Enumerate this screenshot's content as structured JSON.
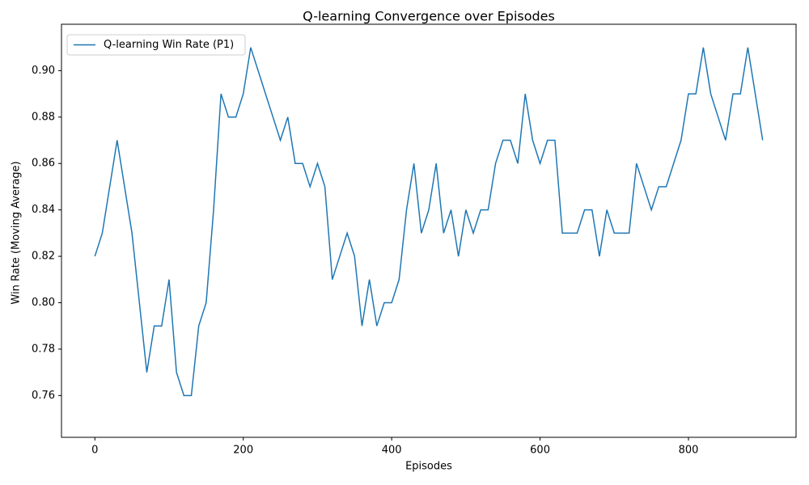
{
  "chart_data": {
    "type": "line",
    "title": "Q-learning Convergence over Episodes",
    "xlabel": "Episodes",
    "ylabel": "Win Rate (Moving Average)",
    "x": [
      0,
      10,
      20,
      30,
      40,
      50,
      60,
      70,
      80,
      90,
      100,
      110,
      120,
      130,
      140,
      150,
      160,
      170,
      180,
      190,
      200,
      210,
      220,
      230,
      240,
      250,
      260,
      270,
      280,
      290,
      300,
      310,
      320,
      330,
      340,
      350,
      360,
      370,
      380,
      390,
      400,
      410,
      420,
      430,
      440,
      450,
      460,
      470,
      480,
      490,
      500,
      510,
      520,
      530,
      540,
      550,
      560,
      570,
      580,
      590,
      600,
      610,
      620,
      630,
      640,
      650,
      660,
      670,
      680,
      690,
      700,
      710,
      720,
      730,
      740,
      750,
      760,
      770,
      780,
      790,
      800,
      810,
      820,
      830,
      840,
      850,
      860,
      870,
      880,
      890,
      900
    ],
    "series": [
      {
        "name": "Q-learning Win Rate (P1)",
        "color": "#1f77b4",
        "values": [
          0.82,
          0.83,
          0.85,
          0.87,
          0.85,
          0.83,
          0.8,
          0.77,
          0.79,
          0.79,
          0.81,
          0.77,
          0.76,
          0.76,
          0.79,
          0.8,
          0.84,
          0.89,
          0.88,
          0.88,
          0.89,
          0.91,
          0.9,
          0.89,
          0.88,
          0.87,
          0.88,
          0.86,
          0.86,
          0.85,
          0.86,
          0.85,
          0.81,
          0.82,
          0.83,
          0.82,
          0.79,
          0.81,
          0.79,
          0.8,
          0.8,
          0.81,
          0.84,
          0.86,
          0.83,
          0.84,
          0.86,
          0.83,
          0.84,
          0.82,
          0.84,
          0.83,
          0.84,
          0.84,
          0.86,
          0.87,
          0.87,
          0.86,
          0.89,
          0.87,
          0.86,
          0.87,
          0.87,
          0.83,
          0.83,
          0.83,
          0.84,
          0.84,
          0.82,
          0.84,
          0.83,
          0.83,
          0.83,
          0.86,
          0.85,
          0.84,
          0.85,
          0.85,
          0.86,
          0.87,
          0.89,
          0.89,
          0.91,
          0.89,
          0.88,
          0.87,
          0.89,
          0.89,
          0.91,
          0.89,
          0.87
        ]
      }
    ],
    "xlim": [
      -45,
      945
    ],
    "ylim": [
      0.742,
      0.92
    ],
    "xticks": [
      0,
      200,
      400,
      600,
      800
    ],
    "yticks": [
      0.76,
      0.78,
      {
        "value": 0.8,
        "label": "0.80"
      },
      0.82,
      0.84,
      0.86,
      0.88,
      {
        "value": 0.9,
        "label": "0.90"
      }
    ],
    "legend": "upper left"
  }
}
